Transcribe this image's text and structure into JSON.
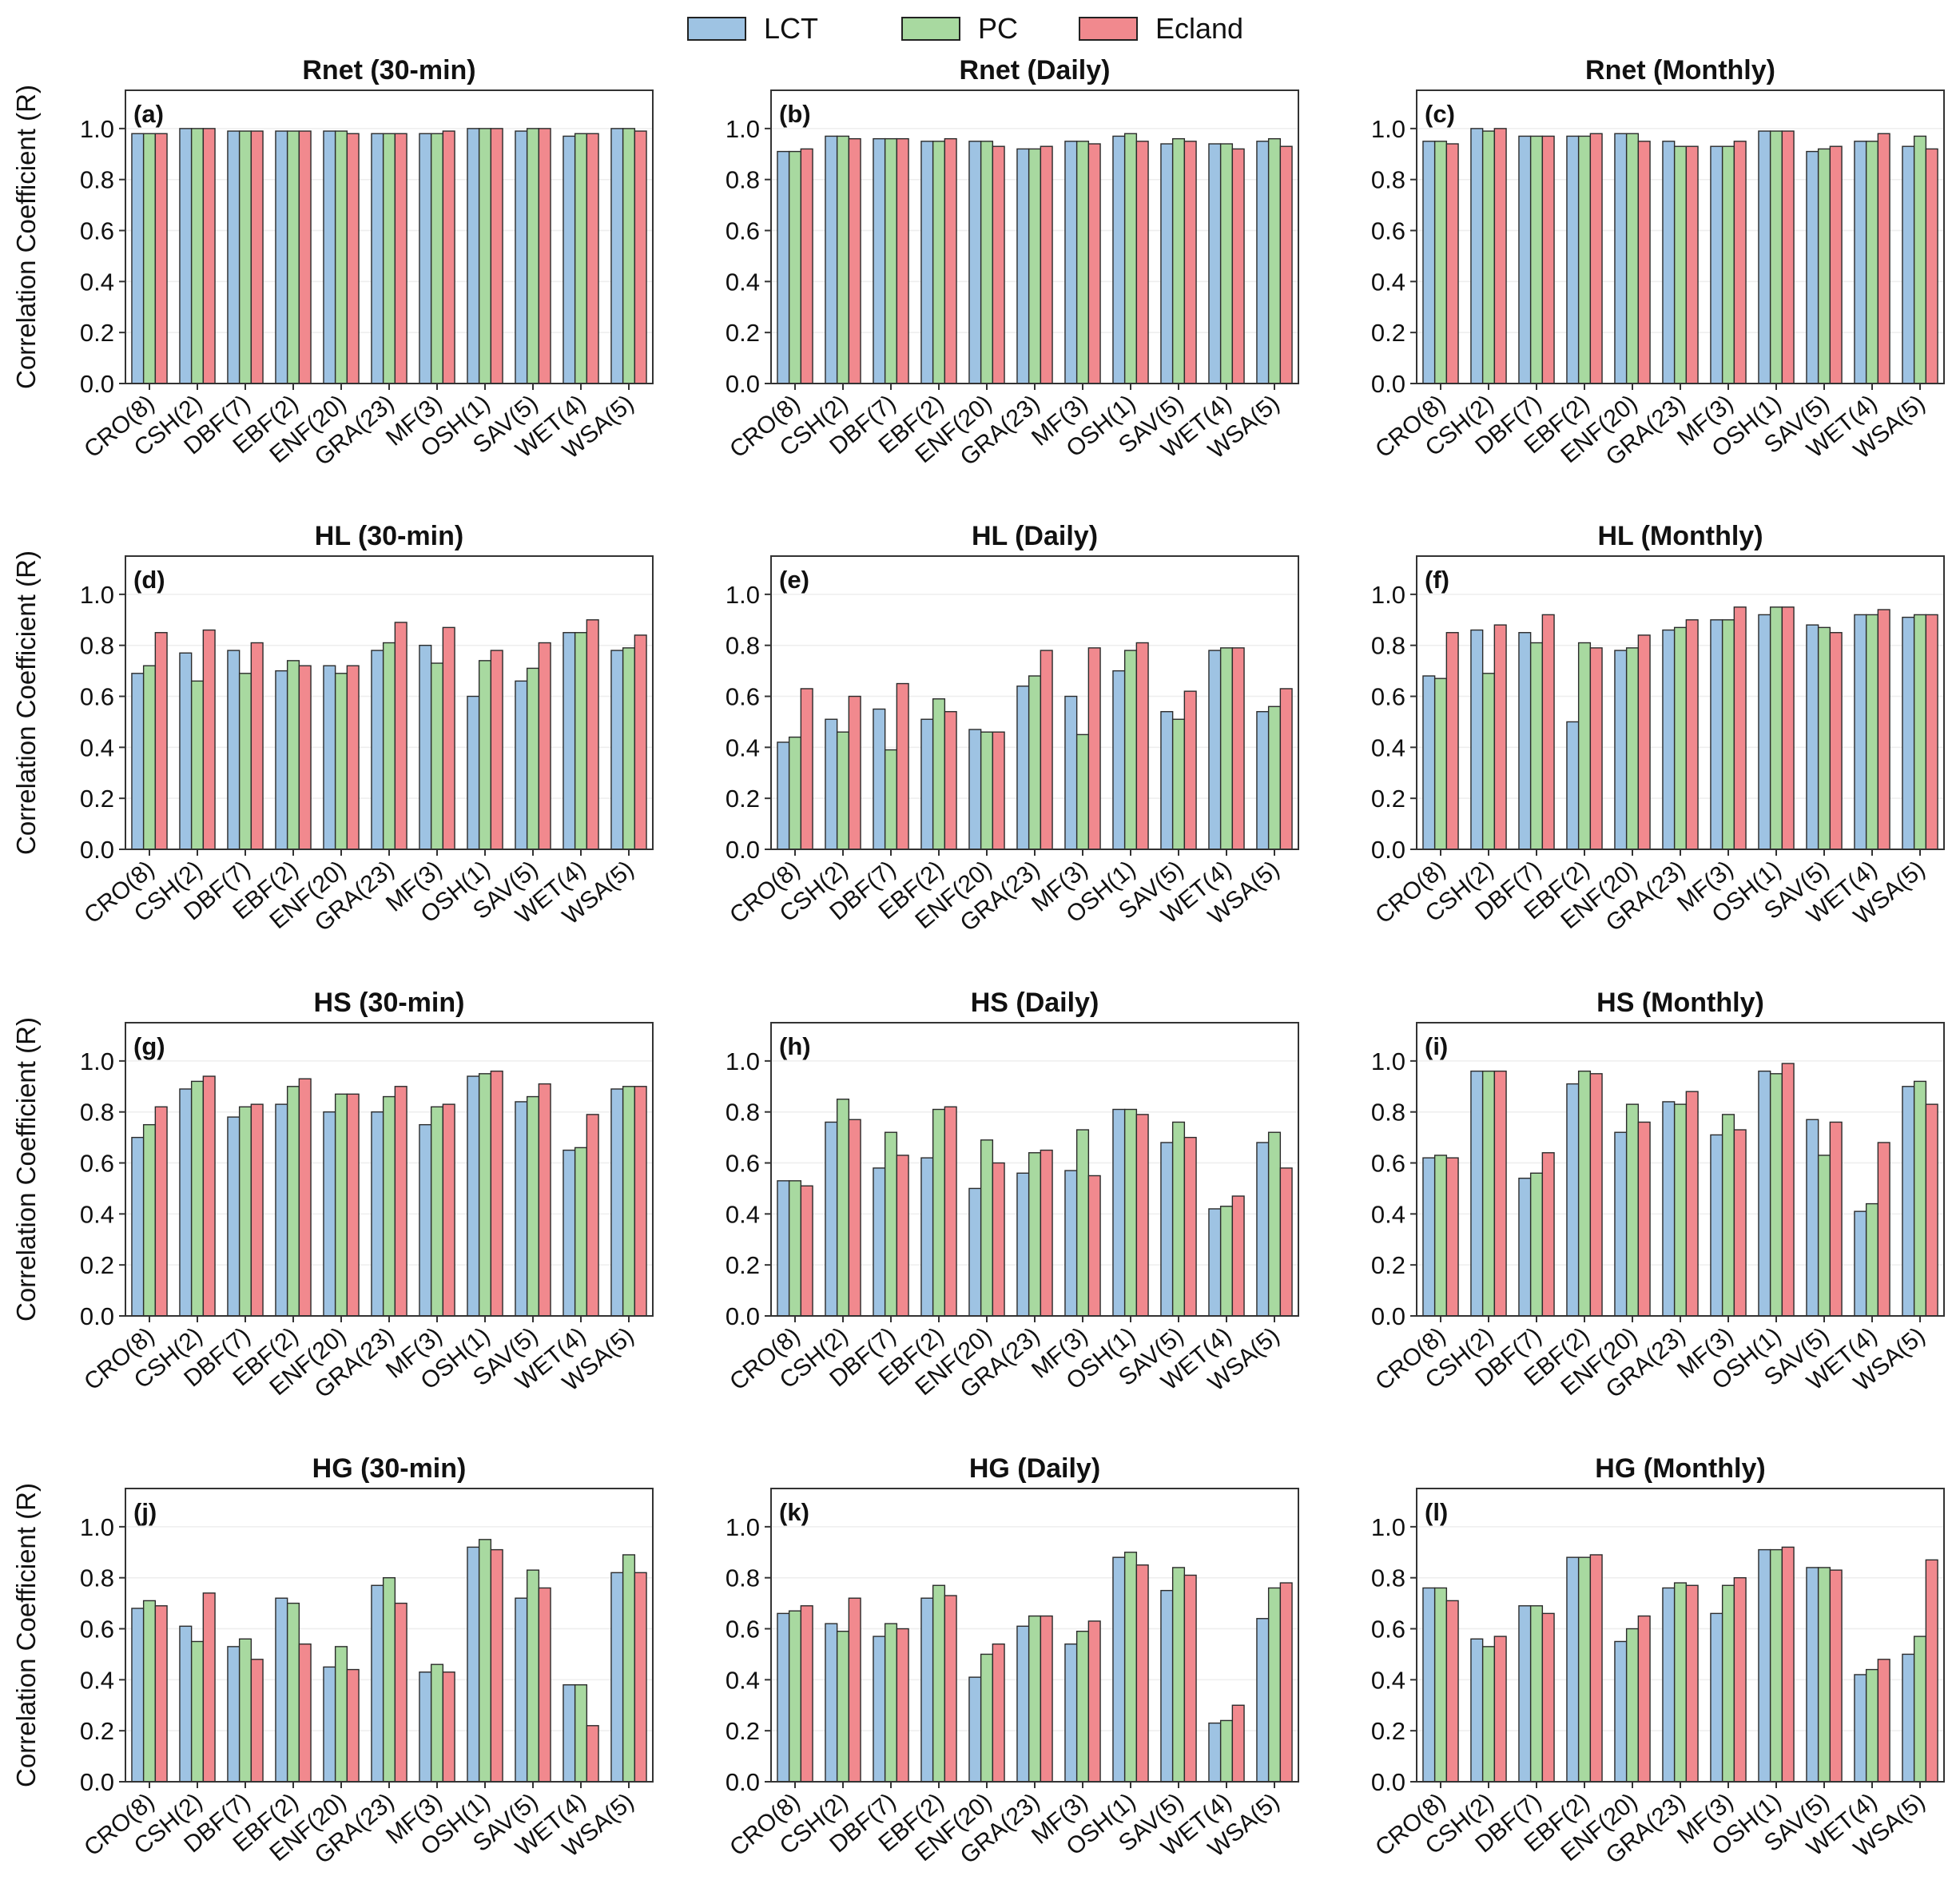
{
  "legend": [
    {
      "name": "LCT",
      "color": "#9ec3e3"
    },
    {
      "name": "PC",
      "color": "#a8d9a0"
    },
    {
      "name": "Ecland",
      "color": "#f1898e"
    }
  ],
  "ylabel": "Correlation Coefficient (R)",
  "yticks": [
    "0.0",
    "0.2",
    "0.4",
    "0.6",
    "0.8",
    "1.0"
  ],
  "chart_data": [
    {
      "type": "bar",
      "panel": "(a)",
      "title": "Rnet (30-min)",
      "ylim": [
        0,
        1.15
      ],
      "categories": [
        "CRO(8)",
        "CSH(2)",
        "DBF(7)",
        "EBF(2)",
        "ENF(20)",
        "GRA(23)",
        "MF(3)",
        "OSH(1)",
        "SAV(5)",
        "WET(4)",
        "WSA(5)"
      ],
      "series": [
        {
          "name": "LCT",
          "values": [
            0.98,
            1.0,
            0.99,
            0.99,
            0.99,
            0.98,
            0.98,
            1.0,
            0.99,
            0.97,
            1.0
          ]
        },
        {
          "name": "PC",
          "values": [
            0.98,
            1.0,
            0.99,
            0.99,
            0.99,
            0.98,
            0.98,
            1.0,
            1.0,
            0.98,
            1.0
          ]
        },
        {
          "name": "Ecland",
          "values": [
            0.98,
            1.0,
            0.99,
            0.99,
            0.98,
            0.98,
            0.99,
            1.0,
            1.0,
            0.98,
            0.99
          ]
        }
      ]
    },
    {
      "type": "bar",
      "panel": "(b)",
      "title": "Rnet (Daily)",
      "ylim": [
        0,
        1.15
      ],
      "categories": [
        "CRO(8)",
        "CSH(2)",
        "DBF(7)",
        "EBF(2)",
        "ENF(20)",
        "GRA(23)",
        "MF(3)",
        "OSH(1)",
        "SAV(5)",
        "WET(4)",
        "WSA(5)"
      ],
      "series": [
        {
          "name": "LCT",
          "values": [
            0.91,
            0.97,
            0.96,
            0.95,
            0.95,
            0.92,
            0.95,
            0.97,
            0.94,
            0.94,
            0.95
          ]
        },
        {
          "name": "PC",
          "values": [
            0.91,
            0.97,
            0.96,
            0.95,
            0.95,
            0.92,
            0.95,
            0.98,
            0.96,
            0.94,
            0.96
          ]
        },
        {
          "name": "Ecland",
          "values": [
            0.92,
            0.96,
            0.96,
            0.96,
            0.93,
            0.93,
            0.94,
            0.95,
            0.95,
            0.92,
            0.93
          ]
        }
      ]
    },
    {
      "type": "bar",
      "panel": "(c)",
      "title": "Rnet (Monthly)",
      "ylim": [
        0,
        1.15
      ],
      "categories": [
        "CRO(8)",
        "CSH(2)",
        "DBF(7)",
        "EBF(2)",
        "ENF(20)",
        "GRA(23)",
        "MF(3)",
        "OSH(1)",
        "SAV(5)",
        "WET(4)",
        "WSA(5)"
      ],
      "series": [
        {
          "name": "LCT",
          "values": [
            0.95,
            1.0,
            0.97,
            0.97,
            0.98,
            0.95,
            0.93,
            0.99,
            0.91,
            0.95,
            0.93
          ]
        },
        {
          "name": "PC",
          "values": [
            0.95,
            0.99,
            0.97,
            0.97,
            0.98,
            0.93,
            0.93,
            0.99,
            0.92,
            0.95,
            0.97
          ]
        },
        {
          "name": "Ecland",
          "values": [
            0.94,
            1.0,
            0.97,
            0.98,
            0.95,
            0.93,
            0.95,
            0.99,
            0.93,
            0.98,
            0.92
          ]
        }
      ]
    },
    {
      "type": "bar",
      "panel": "(d)",
      "title": "HL (30-min)",
      "ylim": [
        0,
        1.15
      ],
      "categories": [
        "CRO(8)",
        "CSH(2)",
        "DBF(7)",
        "EBF(2)",
        "ENF(20)",
        "GRA(23)",
        "MF(3)",
        "OSH(1)",
        "SAV(5)",
        "WET(4)",
        "WSA(5)"
      ],
      "series": [
        {
          "name": "LCT",
          "values": [
            0.69,
            0.77,
            0.78,
            0.7,
            0.72,
            0.78,
            0.8,
            0.6,
            0.66,
            0.85,
            0.78
          ]
        },
        {
          "name": "PC",
          "values": [
            0.72,
            0.66,
            0.69,
            0.74,
            0.69,
            0.81,
            0.73,
            0.74,
            0.71,
            0.85,
            0.79
          ]
        },
        {
          "name": "Ecland",
          "values": [
            0.85,
            0.86,
            0.81,
            0.72,
            0.72,
            0.89,
            0.87,
            0.78,
            0.81,
            0.9,
            0.84
          ]
        }
      ]
    },
    {
      "type": "bar",
      "panel": "(e)",
      "title": "HL (Daily)",
      "ylim": [
        0,
        1.15
      ],
      "categories": [
        "CRO(8)",
        "CSH(2)",
        "DBF(7)",
        "EBF(2)",
        "ENF(20)",
        "GRA(23)",
        "MF(3)",
        "OSH(1)",
        "SAV(5)",
        "WET(4)",
        "WSA(5)"
      ],
      "series": [
        {
          "name": "LCT",
          "values": [
            0.42,
            0.51,
            0.55,
            0.51,
            0.47,
            0.64,
            0.6,
            0.7,
            0.54,
            0.78,
            0.54
          ]
        },
        {
          "name": "PC",
          "values": [
            0.44,
            0.46,
            0.39,
            0.59,
            0.46,
            0.68,
            0.45,
            0.78,
            0.51,
            0.79,
            0.56
          ]
        },
        {
          "name": "Ecland",
          "values": [
            0.63,
            0.6,
            0.65,
            0.54,
            0.46,
            0.78,
            0.79,
            0.81,
            0.62,
            0.79,
            0.63
          ]
        }
      ]
    },
    {
      "type": "bar",
      "panel": "(f)",
      "title": "HL (Monthly)",
      "ylim": [
        0,
        1.15
      ],
      "categories": [
        "CRO(8)",
        "CSH(2)",
        "DBF(7)",
        "EBF(2)",
        "ENF(20)",
        "GRA(23)",
        "MF(3)",
        "OSH(1)",
        "SAV(5)",
        "WET(4)",
        "WSA(5)"
      ],
      "series": [
        {
          "name": "LCT",
          "values": [
            0.68,
            0.86,
            0.85,
            0.5,
            0.78,
            0.86,
            0.9,
            0.92,
            0.88,
            0.92,
            0.91
          ]
        },
        {
          "name": "PC",
          "values": [
            0.67,
            0.69,
            0.81,
            0.81,
            0.79,
            0.87,
            0.9,
            0.95,
            0.87,
            0.92,
            0.92
          ]
        },
        {
          "name": "Ecland",
          "values": [
            0.85,
            0.88,
            0.92,
            0.79,
            0.84,
            0.9,
            0.95,
            0.95,
            0.85,
            0.94,
            0.92
          ]
        }
      ]
    },
    {
      "type": "bar",
      "panel": "(g)",
      "title": "HS (30-min)",
      "ylim": [
        0,
        1.15
      ],
      "categories": [
        "CRO(8)",
        "CSH(2)",
        "DBF(7)",
        "EBF(2)",
        "ENF(20)",
        "GRA(23)",
        "MF(3)",
        "OSH(1)",
        "SAV(5)",
        "WET(4)",
        "WSA(5)"
      ],
      "series": [
        {
          "name": "LCT",
          "values": [
            0.7,
            0.89,
            0.78,
            0.83,
            0.8,
            0.8,
            0.75,
            0.94,
            0.84,
            0.65,
            0.89
          ]
        },
        {
          "name": "PC",
          "values": [
            0.75,
            0.92,
            0.82,
            0.9,
            0.87,
            0.86,
            0.82,
            0.95,
            0.86,
            0.66,
            0.9
          ]
        },
        {
          "name": "Ecland",
          "values": [
            0.82,
            0.94,
            0.83,
            0.93,
            0.87,
            0.9,
            0.83,
            0.96,
            0.91,
            0.79,
            0.9
          ]
        }
      ]
    },
    {
      "type": "bar",
      "panel": "(h)",
      "title": "HS (Daily)",
      "ylim": [
        0,
        1.15
      ],
      "categories": [
        "CRO(8)",
        "CSH(2)",
        "DBF(7)",
        "EBF(2)",
        "ENF(20)",
        "GRA(23)",
        "MF(3)",
        "OSH(1)",
        "SAV(5)",
        "WET(4)",
        "WSA(5)"
      ],
      "series": [
        {
          "name": "LCT",
          "values": [
            0.53,
            0.76,
            0.58,
            0.62,
            0.5,
            0.56,
            0.57,
            0.81,
            0.68,
            0.42,
            0.68
          ]
        },
        {
          "name": "PC",
          "values": [
            0.53,
            0.85,
            0.72,
            0.81,
            0.69,
            0.64,
            0.73,
            0.81,
            0.76,
            0.43,
            0.72
          ]
        },
        {
          "name": "Ecland",
          "values": [
            0.51,
            0.77,
            0.63,
            0.82,
            0.6,
            0.65,
            0.55,
            0.79,
            0.7,
            0.47,
            0.58
          ]
        }
      ]
    },
    {
      "type": "bar",
      "panel": "(i)",
      "title": "HS (Monthly)",
      "ylim": [
        0,
        1.15
      ],
      "categories": [
        "CRO(8)",
        "CSH(2)",
        "DBF(7)",
        "EBF(2)",
        "ENF(20)",
        "GRA(23)",
        "MF(3)",
        "OSH(1)",
        "SAV(5)",
        "WET(4)",
        "WSA(5)"
      ],
      "series": [
        {
          "name": "LCT",
          "values": [
            0.62,
            0.96,
            0.54,
            0.91,
            0.72,
            0.84,
            0.71,
            0.96,
            0.77,
            0.41,
            0.9
          ]
        },
        {
          "name": "PC",
          "values": [
            0.63,
            0.96,
            0.56,
            0.96,
            0.83,
            0.83,
            0.79,
            0.95,
            0.63,
            0.44,
            0.92
          ]
        },
        {
          "name": "Ecland",
          "values": [
            0.62,
            0.96,
            0.64,
            0.95,
            0.76,
            0.88,
            0.73,
            0.99,
            0.76,
            0.68,
            0.83
          ]
        }
      ]
    },
    {
      "type": "bar",
      "panel": "(j)",
      "title": "HG (30-min)",
      "ylim": [
        0,
        1.15
      ],
      "categories": [
        "CRO(8)",
        "CSH(2)",
        "DBF(7)",
        "EBF(2)",
        "ENF(20)",
        "GRA(23)",
        "MF(3)",
        "OSH(1)",
        "SAV(5)",
        "WET(4)",
        "WSA(5)"
      ],
      "series": [
        {
          "name": "LCT",
          "values": [
            0.68,
            0.61,
            0.53,
            0.72,
            0.45,
            0.77,
            0.43,
            0.92,
            0.72,
            0.38,
            0.82
          ]
        },
        {
          "name": "PC",
          "values": [
            0.71,
            0.55,
            0.56,
            0.7,
            0.53,
            0.8,
            0.46,
            0.95,
            0.83,
            0.38,
            0.89
          ]
        },
        {
          "name": "Ecland",
          "values": [
            0.69,
            0.74,
            0.48,
            0.54,
            0.44,
            0.7,
            0.43,
            0.91,
            0.76,
            0.22,
            0.82
          ]
        }
      ]
    },
    {
      "type": "bar",
      "panel": "(k)",
      "title": "HG (Daily)",
      "ylim": [
        0,
        1.15
      ],
      "categories": [
        "CRO(8)",
        "CSH(2)",
        "DBF(7)",
        "EBF(2)",
        "ENF(20)",
        "GRA(23)",
        "MF(3)",
        "OSH(1)",
        "SAV(5)",
        "WET(4)",
        "WSA(5)"
      ],
      "series": [
        {
          "name": "LCT",
          "values": [
            0.66,
            0.62,
            0.57,
            0.72,
            0.41,
            0.61,
            0.54,
            0.88,
            0.75,
            0.23,
            0.64
          ]
        },
        {
          "name": "PC",
          "values": [
            0.67,
            0.59,
            0.62,
            0.77,
            0.5,
            0.65,
            0.59,
            0.9,
            0.84,
            0.24,
            0.76
          ]
        },
        {
          "name": "Ecland",
          "values": [
            0.69,
            0.72,
            0.6,
            0.73,
            0.54,
            0.65,
            0.63,
            0.85,
            0.81,
            0.3,
            0.78
          ]
        }
      ]
    },
    {
      "type": "bar",
      "panel": "(l)",
      "title": "HG (Monthly)",
      "ylim": [
        0,
        1.15
      ],
      "categories": [
        "CRO(8)",
        "CSH(2)",
        "DBF(7)",
        "EBF(2)",
        "ENF(20)",
        "GRA(23)",
        "MF(3)",
        "OSH(1)",
        "SAV(5)",
        "WET(4)",
        "WSA(5)"
      ],
      "series": [
        {
          "name": "LCT",
          "values": [
            0.76,
            0.56,
            0.69,
            0.88,
            0.55,
            0.76,
            0.66,
            0.91,
            0.84,
            0.42,
            0.5
          ]
        },
        {
          "name": "PC",
          "values": [
            0.76,
            0.53,
            0.69,
            0.88,
            0.6,
            0.78,
            0.77,
            0.91,
            0.84,
            0.44,
            0.57
          ]
        },
        {
          "name": "Ecland",
          "values": [
            0.71,
            0.57,
            0.66,
            0.89,
            0.65,
            0.77,
            0.8,
            0.92,
            0.83,
            0.48,
            0.87
          ]
        }
      ]
    }
  ]
}
